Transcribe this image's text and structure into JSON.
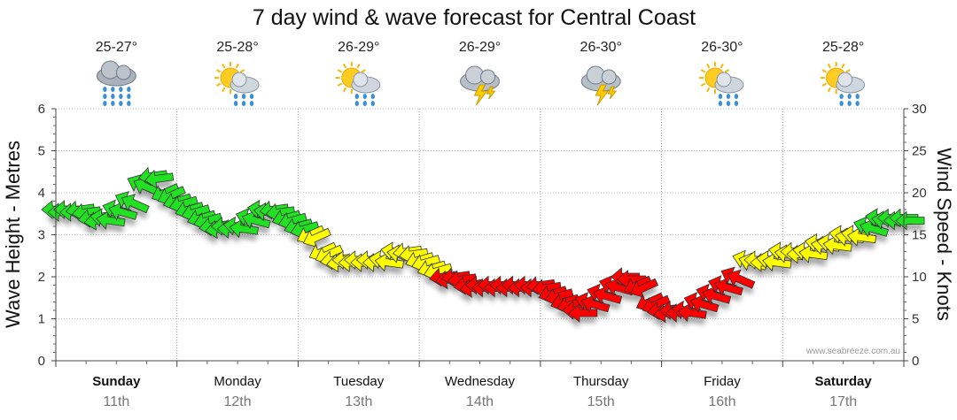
{
  "chart_data": {
    "type": "scatter",
    "title": "7 day wind & wave forecast for Central Coast",
    "ylabel_left": "Wave Height - Metres",
    "ylabel_right": "Wind Speed - Knots",
    "ylim_left": [
      0,
      6
    ],
    "ylim_right": [
      0,
      30
    ],
    "yticks_left": [
      "0",
      "1",
      "2",
      "3",
      "4",
      "5",
      "6"
    ],
    "yticks_right": [
      "0",
      "5",
      "10",
      "15",
      "20",
      "25",
      "30"
    ],
    "credit": "www.seabreeze.com.au",
    "days": [
      {
        "day": "Sunday",
        "date": "11th",
        "temp": "25-27°",
        "icon": "rain-cloud-icon",
        "bold": true
      },
      {
        "day": "Monday",
        "date": "12th",
        "temp": "25-28°",
        "icon": "sun-rain-icon",
        "bold": false
      },
      {
        "day": "Tuesday",
        "date": "13th",
        "temp": "26-29°",
        "icon": "sun-rain-icon",
        "bold": false
      },
      {
        "day": "Wednesday",
        "date": "14th",
        "temp": "26-29°",
        "icon": "storm-icon",
        "bold": false
      },
      {
        "day": "Thursday",
        "date": "15th",
        "temp": "26-30°",
        "icon": "storm-icon",
        "bold": false
      },
      {
        "day": "Friday",
        "date": "16th",
        "temp": "26-30°",
        "icon": "sun-rain-icon",
        "bold": false
      },
      {
        "day": "Saturday",
        "date": "17th",
        "temp": "25-28°",
        "icon": "sun-rain-icon",
        "bold": true
      }
    ],
    "wind_series": {
      "name": "Wind speed (knots)",
      "x_days": [
        0,
        0.1,
        0.2,
        0.3,
        0.4,
        0.5,
        0.6,
        0.7,
        0.8,
        0.9,
        1.0,
        1.1,
        1.2,
        1.3,
        1.4,
        1.5,
        1.6,
        1.7,
        1.8,
        1.9,
        2.0,
        2.1,
        2.2,
        2.3,
        2.4,
        2.5,
        2.6,
        2.7,
        2.8,
        2.9,
        3.0,
        3.1,
        3.2,
        3.3,
        3.4,
        3.5,
        3.6,
        3.7,
        3.8,
        3.9,
        4.0,
        4.1,
        4.2,
        4.3,
        4.4,
        4.5,
        4.6,
        4.7,
        4.8,
        4.9,
        5.0,
        5.1,
        5.2,
        5.3,
        5.4,
        5.5,
        5.6,
        5.7,
        5.8,
        5.9,
        6.0,
        6.1,
        6.2,
        6.3,
        6.4,
        6.5,
        6.6,
        6.7,
        6.8,
        6.9,
        7.0
      ],
      "knots": [
        18,
        18,
        18,
        17,
        17,
        18,
        19,
        21,
        22,
        20,
        19,
        18,
        17,
        16,
        16,
        16,
        17,
        18,
        18,
        17,
        16,
        15,
        13,
        12,
        12,
        12,
        12,
        12,
        13,
        13,
        12,
        11,
        10,
        10,
        9,
        9,
        9,
        9,
        9,
        9,
        9,
        8,
        7,
        6,
        7,
        8,
        9,
        10,
        9,
        7,
        6,
        6,
        6,
        7,
        8,
        9,
        10,
        12,
        12,
        12,
        13,
        13,
        13,
        14,
        14,
        15,
        15,
        16,
        17,
        17,
        17
      ],
      "color_bands": [
        {
          "max_knots": 10,
          "color": "#ff0000"
        },
        {
          "max_knots": 15,
          "color": "#ffff00"
        },
        {
          "max_knots": 30,
          "color": "#22e022"
        }
      ]
    }
  }
}
